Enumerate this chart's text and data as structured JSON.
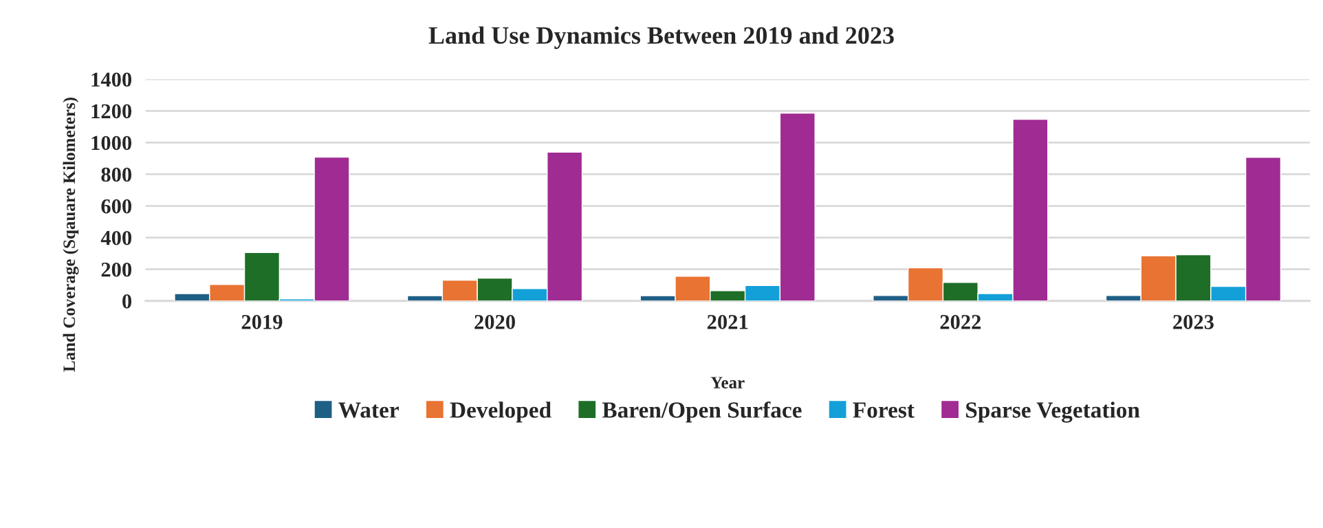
{
  "chart_data": {
    "type": "bar",
    "title": "Land Use Dynamics Between 2019 and 2023",
    "xlabel": "Year",
    "ylabel": "Land Coverage (Sqauare Kilometers)",
    "categories": [
      "2019",
      "2020",
      "2021",
      "2022",
      "2023"
    ],
    "series": [
      {
        "name": "Water",
        "color": "#1f5f86",
        "values": [
          46,
          33,
          33,
          34,
          34
        ]
      },
      {
        "name": "Developed",
        "color": "#e97332",
        "values": [
          104,
          131,
          156,
          209,
          285
        ]
      },
      {
        "name": "Baren/Open Surface",
        "color": "#1e6e28",
        "values": [
          306,
          144,
          65,
          117,
          292
        ]
      },
      {
        "name": "Forest",
        "color": "#13a0d8",
        "values": [
          13,
          78,
          97,
          47,
          92
        ]
      },
      {
        "name": "Sparse Vegetation",
        "color": "#a02b93",
        "values": [
          908,
          939,
          1186,
          1147,
          907
        ]
      }
    ],
    "ylim": [
      0,
      1400
    ],
    "yticks": [
      0,
      200,
      400,
      600,
      800,
      1000,
      1200,
      1400
    ],
    "grid": "y",
    "legend": "bottom"
  }
}
